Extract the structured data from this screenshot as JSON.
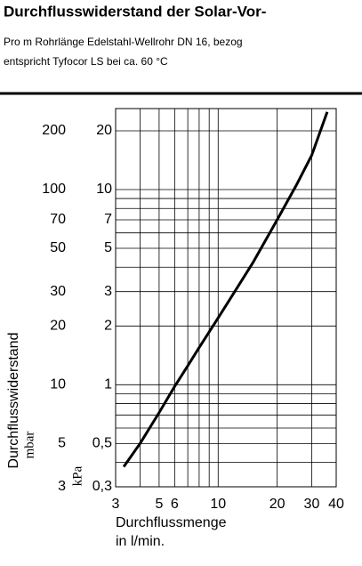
{
  "title": "Durchflusswiderstand der Solar-Vor-",
  "subtitle_lines": [
    "Pro m Rohrlänge Edelstahl-Wellrohr DN 16, bezog",
    "entspricht Tyfocor LS bei ca. 60 °C"
  ],
  "chart_data": {
    "type": "line",
    "y_label": "Durchflusswiderstand",
    "y2_label": "mbar",
    "y_unit_label": "kPa",
    "x_label_lines": [
      "Durchflussmenge",
      "in l/min."
    ],
    "log_x": true,
    "log_y": true,
    "grid": true,
    "xlim": [
      3,
      40
    ],
    "xticks": [
      3,
      5,
      6,
      10,
      20,
      30,
      40
    ],
    "x_minor_grid": [
      4,
      7,
      8,
      9
    ],
    "ylim": [
      0.3,
      26
    ],
    "yticks": [
      {
        "value": 0.3,
        "label": "0,3"
      },
      {
        "value": 0.5,
        "label": "0,5"
      },
      1,
      2,
      3,
      5,
      7,
      10,
      20
    ],
    "y_minor_grid": [
      0.4,
      0.6,
      0.7,
      0.8,
      0.9,
      4,
      6,
      8,
      9
    ],
    "y2lim": [
      3,
      260
    ],
    "y2ticks": [
      3,
      5,
      10,
      20,
      30,
      50,
      70,
      100,
      200
    ],
    "series": [
      {
        "color": "#000000",
        "x": [
          3.3,
          4,
          5,
          6,
          7,
          8,
          10,
          15,
          20,
          25,
          30,
          36
        ],
        "values": [
          0.38,
          0.5,
          0.72,
          0.98,
          1.25,
          1.55,
          2.2,
          4.2,
          7,
          10.5,
          15,
          25
        ]
      }
    ]
  }
}
